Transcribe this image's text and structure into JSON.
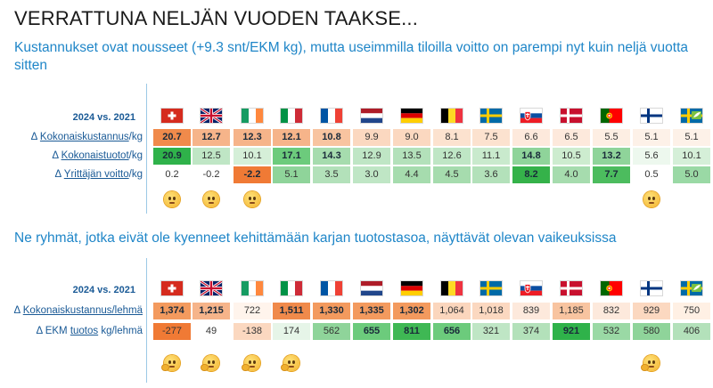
{
  "title": "VERRATTUNA NELJÄN VUODEN TAAKSE...",
  "section1": {
    "subtitle": "Kustannukset ovat nousseet (+9.3 snt/EKM kg), mutta useimmilla tiloilla voitto on parempi nyt kuin neljä vuotta sitten",
    "header": "2024 vs. 2021",
    "flags": [
      "switzerland-flag",
      "uk-flag",
      "ireland-flag",
      "italy-flag",
      "france-flag",
      "netherlands-flag",
      "germany-flag",
      "belgium-flag",
      "sweden-flag",
      "slovakia-flag",
      "denmark-flag",
      "portugal-flag",
      "finland-flag",
      "sweden-organic-flag"
    ],
    "rows": [
      {
        "label_prefix": "Δ ",
        "label_link": "Kokonaiskustannus",
        "label_suffix": "/kg",
        "values": [
          "20.7",
          "12.7",
          "12.3",
          "12.1",
          "10.8",
          "9.9",
          "9.0",
          "8.1",
          "7.5",
          "6.6",
          "6.5",
          "5.5",
          "5.1",
          "5.1"
        ],
        "colors": [
          "#f08a4b",
          "#f6b48a",
          "#f6b48a",
          "#f6b48a",
          "#f8c4a0",
          "#fbd8c0",
          "#fbd8c0",
          "#fce2cf",
          "#fce2cf",
          "#fde9dc",
          "#fde9dc",
          "#fdeee3",
          "#fdf1e8",
          "#fdf1e8"
        ],
        "bold": [
          true,
          true,
          true,
          true,
          true,
          false,
          false,
          false,
          false,
          false,
          false,
          false,
          false,
          false
        ]
      },
      {
        "label_prefix": "Δ ",
        "label_link": "Kokonaistuotot",
        "label_suffix": "/kg",
        "values": [
          "20.9",
          "12.5",
          "10.1",
          "17.1",
          "14.3",
          "12.9",
          "13.5",
          "12.6",
          "11.1",
          "14.8",
          "10.5",
          "13.2",
          "5.6",
          "10.1"
        ],
        "colors": [
          "#2fb24a",
          "#bfe6c5",
          "#d5efd8",
          "#6ccb7c",
          "#a6dcae",
          "#bfe6c5",
          "#b3e1ba",
          "#bfe6c5",
          "#c9eacd",
          "#8fd49a",
          "#cdeccf",
          "#8fd49a",
          "#edf8ee",
          "#d5efd8"
        ],
        "bold": [
          true,
          false,
          false,
          true,
          true,
          false,
          false,
          false,
          false,
          true,
          false,
          true,
          false,
          false
        ]
      },
      {
        "label_prefix": "Δ ",
        "label_link": "Yrittäjän voitto",
        "label_suffix": "/kg",
        "values": [
          "0.2",
          "-0.2",
          "-2.2",
          "5.1",
          "3.5",
          "3.0",
          "4.4",
          "4.5",
          "3.6",
          "8.2",
          "4.0",
          "7.7",
          "0.5",
          "5.0"
        ],
        "colors": [
          "#ffffff",
          "#ffffff",
          "#f07a35",
          "#8fd49a",
          "#b3e1ba",
          "#bfe6c5",
          "#a6dcae",
          "#a6dcae",
          "#b3e1ba",
          "#35b24a",
          "#a6dcae",
          "#4cbc5e",
          "#ffffff",
          "#9ad9a5"
        ],
        "bold": [
          false,
          false,
          true,
          false,
          false,
          false,
          false,
          false,
          false,
          true,
          false,
          true,
          false,
          false
        ]
      }
    ],
    "emoji_cols": [
      0,
      1,
      2,
      12
    ]
  },
  "section2": {
    "subtitle": "Ne ryhmät, jotka eivät ole kyenneet kehittämään karjan tuotostasoa, näyttävät olevan vaikeuksissa",
    "header": "2024 vs. 2021",
    "rows": [
      {
        "label_prefix": "Δ ",
        "label_link": "Kokonaiskustannus/lehmä",
        "label_suffix": "",
        "values": [
          "1,374",
          "1,215",
          "722",
          "1,511",
          "1,330",
          "1,335",
          "1,302",
          "1,064",
          "1,018",
          "839",
          "1,185",
          "832",
          "929",
          "750"
        ],
        "colors": [
          "#f39a5e",
          "#f6b48a",
          "#fff4ec",
          "#f08a4b",
          "#f39a5e",
          "#f39a5e",
          "#f39a5e",
          "#fbd6bd",
          "#fbd8c0",
          "#fde9dc",
          "#f8c4a0",
          "#fde9dc",
          "#fbd8c0",
          "#fff0e4"
        ],
        "bold": [
          true,
          true,
          false,
          true,
          true,
          true,
          true,
          false,
          false,
          false,
          false,
          false,
          false,
          false
        ]
      },
      {
        "label_prefix": "Δ EKM ",
        "label_link": "tuotos",
        "label_suffix": " kg/lehmä",
        "values": [
          "-277",
          "49",
          "-138",
          "174",
          "562",
          "655",
          "811",
          "656",
          "321",
          "374",
          "921",
          "532",
          "580",
          "406"
        ],
        "colors": [
          "#f07a35",
          "#ffffff",
          "#fbd8c0",
          "#e6f5e8",
          "#8fd49a",
          "#6ccb7c",
          "#3fb854",
          "#6ccb7c",
          "#bfe6c5",
          "#b3e1ba",
          "#2fb24a",
          "#9ad9a5",
          "#8fd49a",
          "#b3e1ba"
        ],
        "bold": [
          false,
          false,
          false,
          false,
          false,
          true,
          true,
          true,
          false,
          false,
          true,
          false,
          false,
          false
        ]
      }
    ],
    "emoji_cols": [
      0,
      1,
      2,
      3,
      12
    ]
  }
}
